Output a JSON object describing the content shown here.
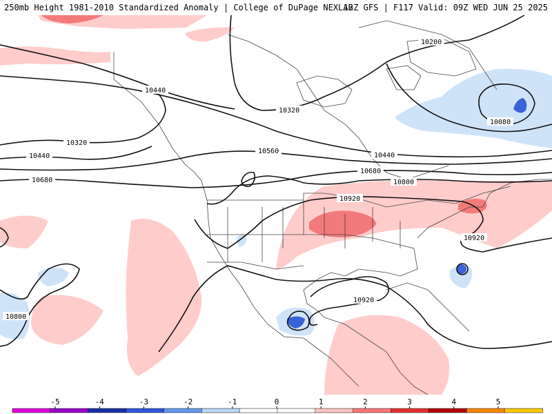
{
  "header": {
    "title_left": "250mb Height 1981-2010 Standardized Anomaly | College of DuPage NEXLAB",
    "title_right": "12Z GFS | F117 Valid: 09Z WED JUN 25 2025"
  },
  "contours": [
    {
      "label": "10200"
    },
    {
      "label": "10320"
    },
    {
      "label": "10440"
    },
    {
      "label": "10560"
    },
    {
      "label": "10680"
    },
    {
      "label": "10800"
    },
    {
      "label": "10920"
    },
    {
      "label": "10080"
    }
  ],
  "legend": {
    "ticks": [
      "-5",
      "-4",
      "-3",
      "-2",
      "-1",
      "0",
      "1",
      "2",
      "3",
      "4",
      "5"
    ],
    "colors": [
      "#e000e0",
      "#9900cc",
      "#1a2fa8",
      "#3355dd",
      "#6699ee",
      "#bcd8f5",
      "#ffffff",
      "#ffffff",
      "#ffc4c4",
      "#ff7777",
      "#e83030",
      "#b00000",
      "#ff8800",
      "#ffcc00"
    ]
  },
  "colors": {
    "positive_light": "#ffcccc",
    "positive_mid": "#f27a7a",
    "negative_light": "#cfe3f8",
    "negative_dark": "#3a62d9"
  }
}
